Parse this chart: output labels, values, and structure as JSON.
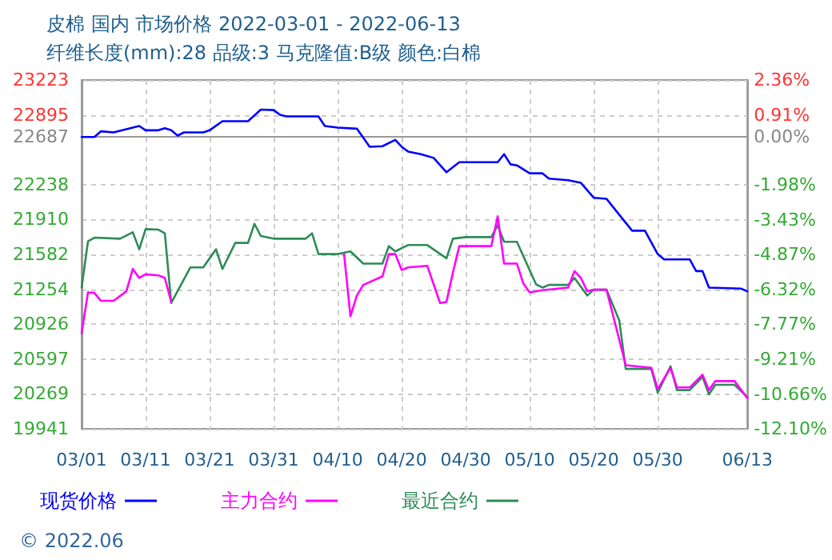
{
  "chart_data": {
    "type": "line",
    "title": "皮棉 国内 市场价格 2022-03-01 - 2022-06-13",
    "subtitle": "纤维长度(mm):28 品级:3 马克隆值:B级 颜色:白棉",
    "xlim": [
      "--03-01",
      "--06-13"
    ],
    "xticks": [
      {
        "value": "--03-01",
        "label": "03/01"
      },
      {
        "value": "--03-11",
        "label": "03/11"
      },
      {
        "value": "--03-21",
        "label": "03/21"
      },
      {
        "value": "--03-31",
        "label": "03/31"
      },
      {
        "value": "--04-10",
        "label": "04/10"
      },
      {
        "value": "--04-20",
        "label": "04/20"
      },
      {
        "value": "--04-30",
        "label": "04/30"
      },
      {
        "value": "--05-10",
        "label": "05/10"
      },
      {
        "value": "--05-20",
        "label": "05/20"
      },
      {
        "value": "--05-30",
        "label": "05/30"
      },
      {
        "value": "--06-13",
        "label": "06/13"
      }
    ],
    "ylim": [
      19941,
      23223
    ],
    "yticks": [
      19941,
      20269,
      20597,
      20926,
      21254,
      21582,
      21910,
      22238,
      22687,
      22895,
      23223
    ],
    "y2lim": [
      -12.1,
      2.36
    ],
    "y2ticks": [
      {
        "value": -12.1,
        "label": "-12.10%"
      },
      {
        "value": -10.66,
        "label": "-10.66%"
      },
      {
        "value": -9.21,
        "label": "-9.21%"
      },
      {
        "value": -7.77,
        "label": "-7.77%"
      },
      {
        "value": -6.32,
        "label": "-6.32%"
      },
      {
        "value": -4.87,
        "label": "-4.87%"
      },
      {
        "value": -3.43,
        "label": "-3.43%"
      },
      {
        "value": -1.98,
        "label": "-1.98%"
      },
      {
        "value": 0.0,
        "label": "0.00%"
      },
      {
        "value": 0.91,
        "label": "0.91%"
      },
      {
        "value": 2.36,
        "label": "2.36%"
      }
    ],
    "grid": true,
    "legend": "bottom left",
    "marker": "none",
    "line_style": "solid",
    "ref_lines": [
      {
        "axis": "y",
        "value": 22687,
        "color": "#999999"
      }
    ],
    "annotations": [
      "© 2022.06"
    ],
    "series": [
      {
        "name": "现货价格",
        "color": "#0000ff",
        "x": [
          "--03-01",
          "--03-03",
          "--03-04",
          "--03-06",
          "--03-08",
          "--03-10",
          "--03-11",
          "--03-13",
          "--03-14",
          "--03-15",
          "--03-16",
          "--03-17",
          "--03-20",
          "--03-21",
          "--03-23",
          "--03-27",
          "--03-29",
          "--03-31",
          "--04-01",
          "--04-02",
          "--04-07",
          "--04-08",
          "--04-10",
          "--04-13",
          "--04-15",
          "--04-17",
          "--04-19",
          "--04-20",
          "--04-21",
          "--04-23",
          "--04-25",
          "--04-27",
          "--04-29",
          "--05-05",
          "--05-06",
          "--05-07",
          "--05-08",
          "--05-10",
          "--05-12",
          "--05-13",
          "--05-16",
          "--05-18",
          "--05-20",
          "--05-22",
          "--05-26",
          "--05-28",
          "--05-30",
          "--05-31",
          "--06-04",
          "--06-05",
          "--06-06",
          "--06-07",
          "--06-12",
          "--06-13"
        ],
        "values": [
          22687,
          22687,
          22740,
          22730,
          22760,
          22790,
          22750,
          22750,
          22770,
          22750,
          22700,
          22730,
          22730,
          22750,
          22835,
          22835,
          22945,
          22940,
          22895,
          22880,
          22880,
          22790,
          22775,
          22765,
          22595,
          22600,
          22660,
          22595,
          22550,
          22525,
          22490,
          22355,
          22450,
          22450,
          22525,
          22430,
          22420,
          22345,
          22345,
          22295,
          22280,
          22255,
          22115,
          22105,
          21805,
          21805,
          21585,
          21535,
          21535,
          21425,
          21425,
          21270,
          21260,
          21235
        ]
      },
      {
        "name": "主力合约",
        "color": "#ff00ff",
        "x": [
          "--03-01",
          "--03-02",
          "--03-03",
          "--03-04",
          "--03-06",
          "--03-08",
          "--03-09",
          "--03-10",
          "--03-11",
          "--03-13",
          "--03-14",
          "--03-15",
          "--03-16",
          "--04-10",
          "--04-11",
          "--04-12",
          "--04-13",
          "--04-14",
          "--04-17",
          "--04-18",
          "--04-19",
          "--04-20",
          "--04-21",
          "--04-24",
          "--04-26",
          "--04-27",
          "--04-28",
          "--04-29",
          "--05-04",
          "--05-05",
          "--05-06",
          "--05-08",
          "--05-09",
          "--05-10",
          "--05-12",
          "--05-16",
          "--05-17",
          "--05-18",
          "--05-19",
          "--05-20",
          "--05-22",
          "--05-25",
          "--05-29",
          "--05-30",
          "--06-01",
          "--06-02",
          "--06-04",
          "--06-06",
          "--06-07",
          "--06-08",
          "--06-11",
          "--06-13"
        ],
        "values": [
          20840,
          21225,
          21220,
          21145,
          21145,
          21235,
          21445,
          21360,
          21395,
          21385,
          21360,
          21135,
          null,
          null,
          21585,
          21000,
          21195,
          21295,
          21375,
          21585,
          21585,
          21435,
          21460,
          21475,
          21125,
          21135,
          21410,
          21660,
          21660,
          21940,
          21495,
          21495,
          21310,
          21225,
          21245,
          21270,
          21425,
          21360,
          21235,
          21250,
          21250,
          20540,
          20515,
          20315,
          20515,
          20330,
          20330,
          20450,
          20305,
          20390,
          20390,
          20230
        ]
      },
      {
        "name": "最近合约",
        "color": "#2e8b57",
        "x": [
          "--03-01",
          "--03-02",
          "--03-03",
          "--03-07",
          "--03-09",
          "--03-10",
          "--03-11",
          "--03-13",
          "--03-14",
          "--03-15",
          "--03-18",
          "--03-20",
          "--03-22",
          "--03-23",
          "--03-25",
          "--03-27",
          "--03-28",
          "--03-29",
          "--03-31",
          "--04-05",
          "--04-06",
          "--04-07",
          "--04-10",
          "--04-12",
          "--04-14",
          "--04-17",
          "--04-18",
          "--04-19",
          "--04-21",
          "--04-24",
          "--04-27",
          "--04-28",
          "--04-30",
          "--05-04",
          "--05-05",
          "--05-06",
          "--05-08",
          "--05-11",
          "--05-12",
          "--05-13",
          "--05-16",
          "--05-17",
          "--05-19",
          "--05-20",
          "--05-22",
          "--05-24",
          "--05-25",
          "--05-29",
          "--05-30",
          "--06-01",
          "--06-02",
          "--06-04",
          "--06-06",
          "--06-07",
          "--06-08",
          "--06-11",
          "--06-13"
        ],
        "values": [
          21270,
          21705,
          21740,
          21730,
          21790,
          21630,
          21820,
          21815,
          21780,
          21125,
          21460,
          21460,
          21630,
          21445,
          21690,
          21690,
          21870,
          21755,
          21730,
          21730,
          21780,
          21585,
          21585,
          21610,
          21495,
          21495,
          21660,
          21610,
          21670,
          21670,
          21545,
          21730,
          21745,
          21745,
          21855,
          21700,
          21700,
          21300,
          21270,
          21295,
          21295,
          21360,
          21195,
          21250,
          21250,
          20960,
          20505,
          20505,
          20280,
          20530,
          20305,
          20305,
          20430,
          20265,
          20355,
          20355,
          20240
        ]
      }
    ]
  }
}
